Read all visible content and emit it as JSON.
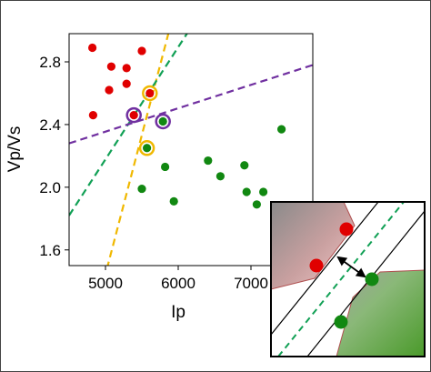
{
  "chart_data": {
    "type": "scatter",
    "xlabel": "Ip",
    "ylabel": "Vp/Vs",
    "xlim": [
      4500,
      7850
    ],
    "ylim": [
      1.5,
      2.98
    ],
    "x_ticks": [
      "5000",
      "6000",
      "7000"
    ],
    "x_tick_values": [
      5000,
      6000,
      7000
    ],
    "y_ticks": [
      "1.6",
      "2.0",
      "2.4",
      "2.8"
    ],
    "y_tick_values": [
      1.6,
      2.0,
      2.4,
      2.8
    ],
    "grid": false,
    "series": [
      {
        "color": "#e00000",
        "points": [
          {
            "x": 4820,
            "y": 2.89
          },
          {
            "x": 5080,
            "y": 2.77
          },
          {
            "x": 5290,
            "y": 2.76
          },
          {
            "x": 5500,
            "y": 2.87
          },
          {
            "x": 5050,
            "y": 2.62
          },
          {
            "x": 5290,
            "y": 2.66
          },
          {
            "x": 4830,
            "y": 2.46
          },
          {
            "x": 5610,
            "y": 2.6
          },
          {
            "x": 5390,
            "y": 2.46
          }
        ]
      },
      {
        "color": "#118811",
        "points": [
          {
            "x": 5790,
            "y": 2.42
          },
          {
            "x": 5570,
            "y": 2.25
          },
          {
            "x": 5820,
            "y": 2.13
          },
          {
            "x": 5500,
            "y": 1.99
          },
          {
            "x": 5940,
            "y": 1.91
          },
          {
            "x": 6410,
            "y": 2.17
          },
          {
            "x": 6580,
            "y": 2.07
          },
          {
            "x": 6910,
            "y": 2.14
          },
          {
            "x": 6940,
            "y": 1.97
          },
          {
            "x": 7080,
            "y": 1.89
          },
          {
            "x": 7170,
            "y": 1.97
          },
          {
            "x": 7420,
            "y": 2.37
          }
        ]
      }
    ],
    "highlighted_points": [
      {
        "x": 5610,
        "y": 2.6,
        "ring_color": "#f0b800"
      },
      {
        "x": 5570,
        "y": 2.25,
        "ring_color": "#f0b800"
      },
      {
        "x": 5390,
        "y": 2.46,
        "ring_color": "#7030a0"
      },
      {
        "x": 5790,
        "y": 2.42,
        "ring_color": "#7030a0"
      }
    ],
    "decision_lines": [
      {
        "color": "#f0b800",
        "style": "dashed",
        "points": [
          [
            5020,
            1.48
          ],
          [
            5870,
            2.99
          ]
        ]
      },
      {
        "color": "#11a055",
        "style": "dashed",
        "points": [
          [
            4500,
            1.82
          ],
          [
            6120,
            2.98
          ]
        ]
      },
      {
        "color": "#7030a0",
        "style": "dashed",
        "points": [
          [
            4500,
            2.28
          ],
          [
            7850,
            2.78
          ]
        ]
      }
    ]
  },
  "inset": {
    "description_colors": {
      "red_region": "#d09a9a",
      "green_region": "#6aa84f",
      "band_line": "#000000",
      "center_line": "#11a055",
      "arrow": "#000000"
    }
  }
}
